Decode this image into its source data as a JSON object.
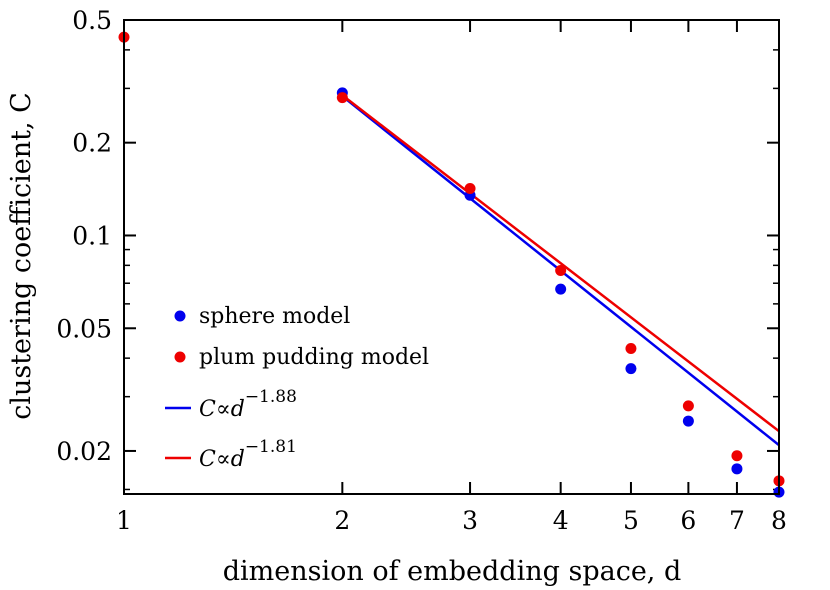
{
  "chart_data": {
    "type": "scatter",
    "xlabel": "dimension of embedding space, d",
    "ylabel": "clustering coefficient, C",
    "xscale": "log",
    "yscale": "log",
    "xlim": [
      1,
      8
    ],
    "ylim": [
      0.0145,
      0.5
    ],
    "xticks": [
      1,
      2,
      3,
      4,
      5,
      6,
      7,
      8
    ],
    "yticks": [
      0.02,
      0.05,
      0.1,
      0.2,
      0.5
    ],
    "legend_position": "bottom-left",
    "series": [
      {
        "name": "sphere model",
        "kind": "points",
        "color": "#0000ee",
        "x": [
          2,
          3,
          4,
          5,
          6,
          7,
          8
        ],
        "y": [
          0.29,
          0.135,
          0.067,
          0.037,
          0.025,
          0.0175,
          0.0147
        ]
      },
      {
        "name": "plum pudding model",
        "kind": "points",
        "color": "#ee0000",
        "x": [
          1,
          2,
          3,
          4,
          5,
          6,
          7,
          8
        ],
        "y": [
          0.44,
          0.28,
          0.142,
          0.077,
          0.043,
          0.028,
          0.0193,
          0.016
        ]
      },
      {
        "name": "C∝d^−1.88",
        "kind": "fit",
        "color": "#0000ee",
        "exponent": -1.88,
        "x_range": [
          2,
          8
        ],
        "y_at_start": 0.283
      },
      {
        "name": "C∝d^−1.81",
        "kind": "fit",
        "color": "#ee0000",
        "exponent": -1.81,
        "x_range": [
          2,
          8
        ],
        "y_at_start": 0.285
      }
    ],
    "legend": {
      "sphere_label": "sphere model",
      "plum_label": "plum pudding model",
      "fit1_base": "C∝d",
      "fit1_exp": "−1.88",
      "fit2_base": "C∝d",
      "fit2_exp": "−1.81"
    }
  }
}
